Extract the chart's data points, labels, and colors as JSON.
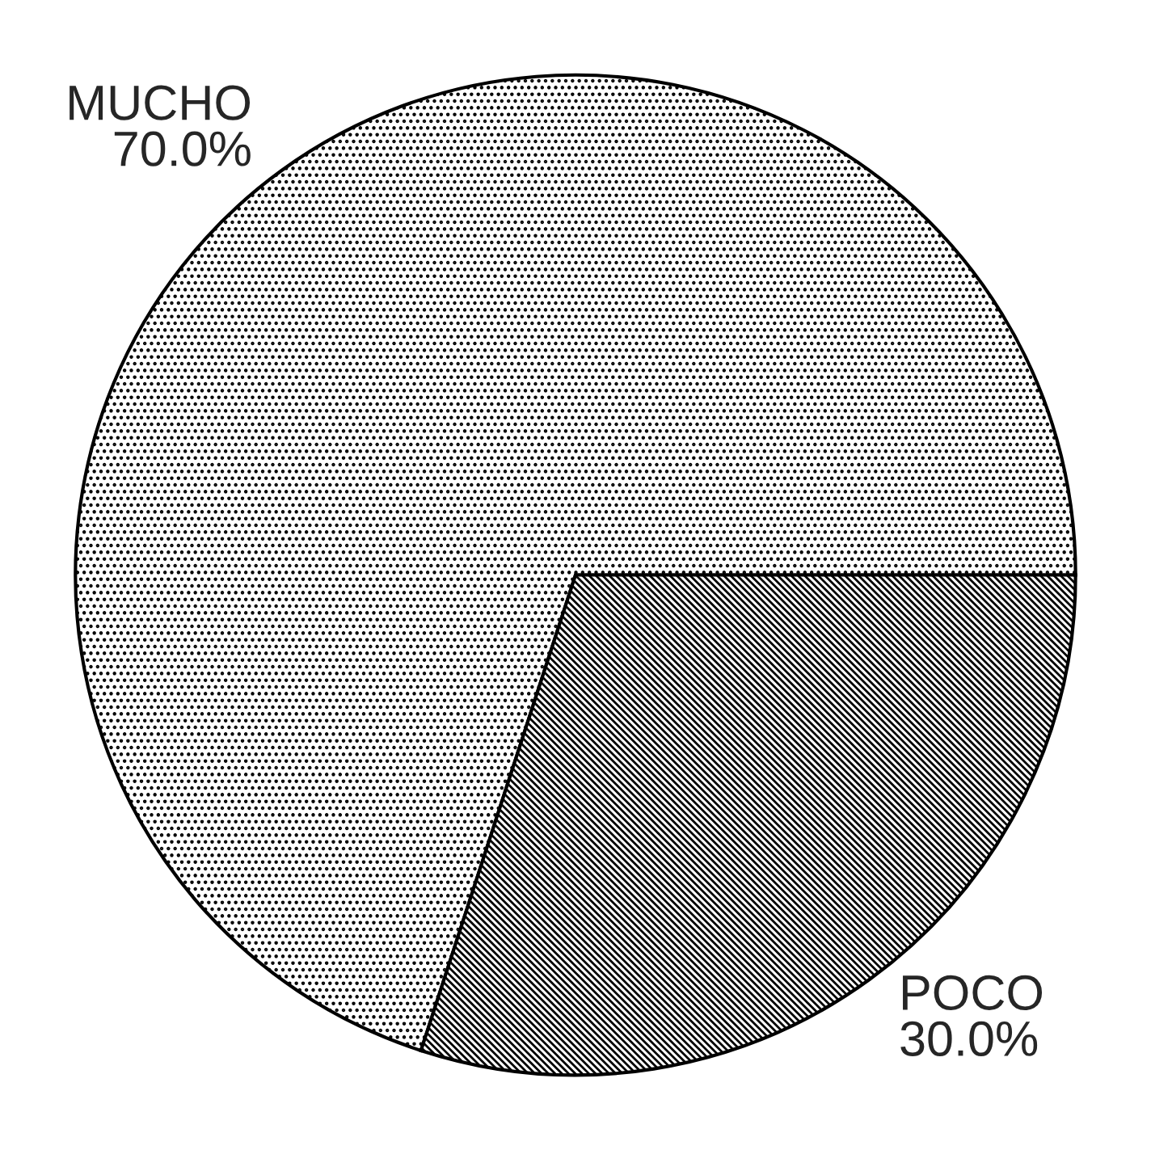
{
  "chart_data": {
    "type": "pie",
    "categories": [
      "MUCHO",
      "POCO"
    ],
    "values": [
      70,
      30
    ],
    "value_labels": [
      "70.0%",
      "30.0%"
    ],
    "colors": [
      "#000000",
      "#000000"
    ]
  }
}
